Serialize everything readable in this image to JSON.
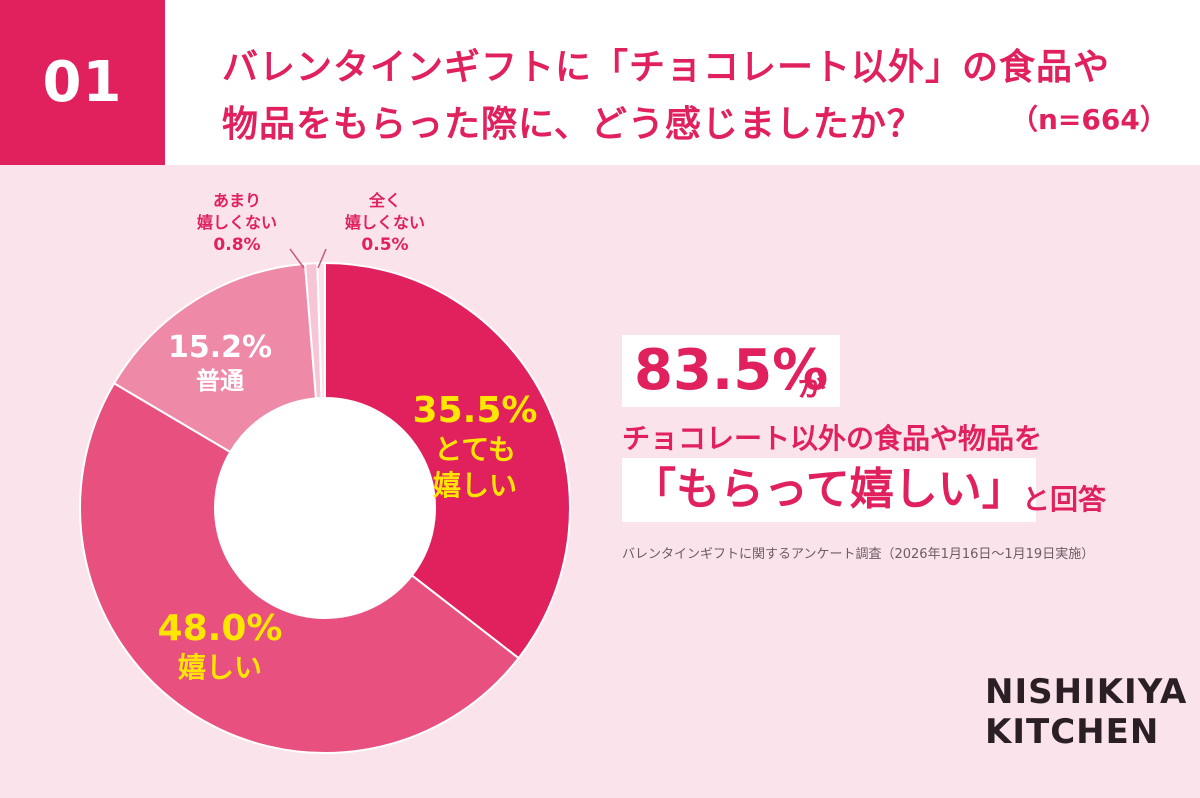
{
  "header": {
    "number": "01",
    "question_line1": "バレンタインギフトに「チョコレート以外」の食品や",
    "question_line2": "物品をもらった際に、どう感じましたか？",
    "sample": "（n=664）"
  },
  "chart_data": {
    "type": "pie",
    "donut": true,
    "categories": [
      "とても嬉しい",
      "嬉しい",
      "普通",
      "あまり嬉しくない",
      "全く嬉しくない"
    ],
    "values": [
      35.5,
      48.0,
      15.2,
      0.8,
      0.5
    ],
    "colors": [
      "#e0215e",
      "#e8507f",
      "#ef89a8",
      "#f7c6d6",
      "#fbe0ea"
    ]
  },
  "labels": {
    "very_happy_pct": "35.5%",
    "very_happy_l1": "とても",
    "very_happy_l2": "嬉しい",
    "happy_pct": "48.0%",
    "happy_word": "嬉しい",
    "neutral_pct": "15.2%",
    "neutral_word": "普通",
    "not_very_l1": "あまり",
    "not_very_l2": "嬉しくない",
    "not_very_pct": "0.8%",
    "not_at_all_l1": "全く",
    "not_at_all_l2": "嬉しくない",
    "not_at_all_pct": "0.5%"
  },
  "callout": {
    "big_pct": "83.5%",
    "ga": "が",
    "line2": "チョコレート以外の食品や物品を",
    "quote": "「もらって嬉しい」",
    "kaitou": "と回答",
    "survey_note": "バレンタインギフトに関するアンケート調査（2026年1月16日〜1月19日実施）"
  },
  "brand": {
    "line1": "NISHIKIYA",
    "line2": "KITCHEN"
  },
  "colors": {
    "accent": "#e0215e",
    "background": "#fbe3ec",
    "highlight_text": "#ffe600"
  }
}
